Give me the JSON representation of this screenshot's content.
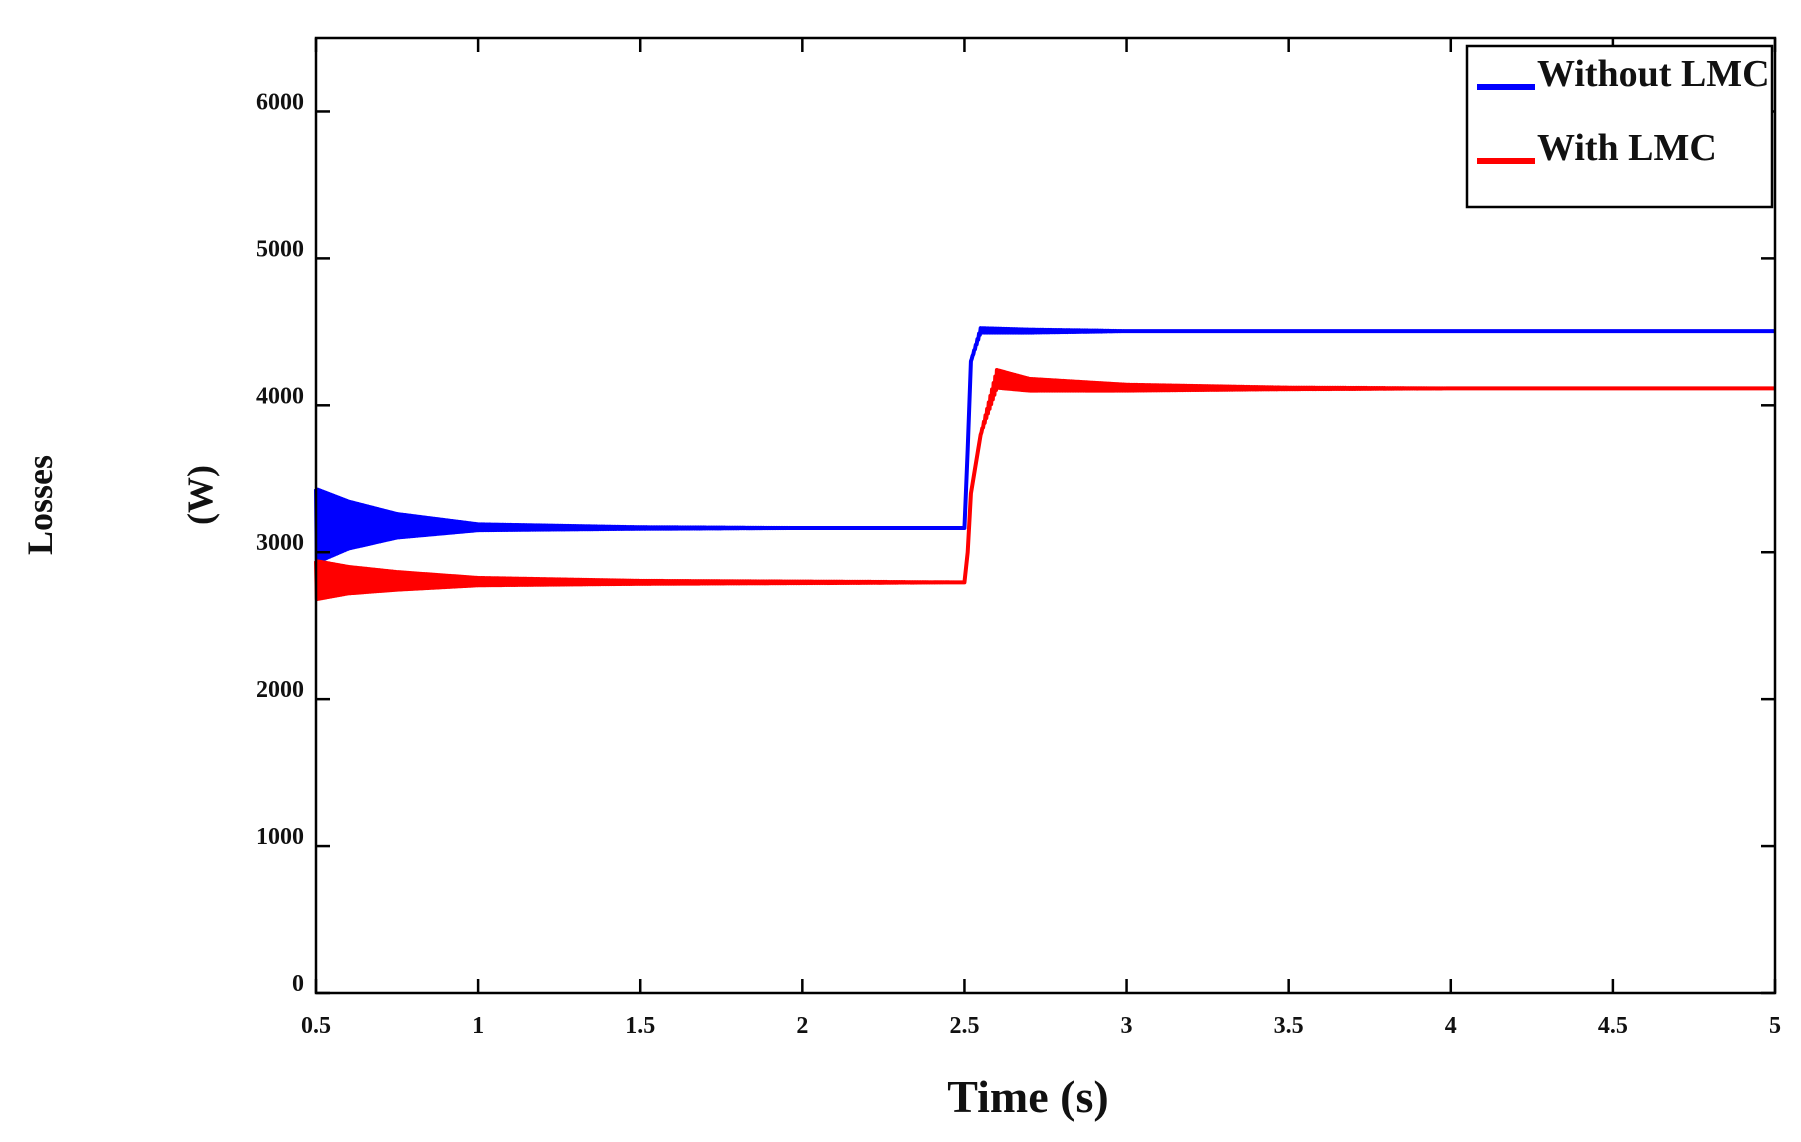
{
  "chart_data": {
    "type": "line",
    "title": "",
    "xlabel": "Time (s)",
    "ylabel_line1": "Losses",
    "ylabel_line2": "(W)",
    "xlim": [
      0.5,
      5
    ],
    "ylim": [
      0,
      6500
    ],
    "xticks": [
      0.5,
      1,
      1.5,
      2,
      2.5,
      3,
      3.5,
      4,
      4.5,
      5
    ],
    "xtick_labels": [
      "0.5",
      "1",
      "1.5",
      "2",
      "2.5",
      "3",
      "3.5",
      "4",
      "4.5",
      "5"
    ],
    "yticks": [
      0,
      1000,
      2000,
      3000,
      4000,
      5000,
      6000
    ],
    "ytick_labels": [
      "0",
      "1000",
      "2000",
      "3000",
      "4000",
      "5000",
      "6000"
    ],
    "grid": false,
    "legend_position": "top-right",
    "series": [
      {
        "name": "Without LMC",
        "color": "#0000ff",
        "x": [
          0.5,
          0.6,
          0.75,
          1.0,
          1.5,
          2.0,
          2.49,
          2.5,
          2.51,
          2.52,
          2.55,
          2.7,
          3.0,
          4.0,
          5.0
        ],
        "y": [
          3180,
          3185,
          3180,
          3170,
          3165,
          3165,
          3165,
          3165,
          3700,
          4300,
          4510,
          4505,
          4505,
          4505,
          4505
        ],
        "oscillation_amplitude": [
          250,
          160,
          80,
          20,
          5,
          0,
          0,
          0,
          0,
          0,
          15,
          10,
          0,
          0,
          0
        ]
      },
      {
        "name": "With LMC",
        "color": "#ff0000",
        "x": [
          0.5,
          0.6,
          0.75,
          1.0,
          1.5,
          2.0,
          2.49,
          2.5,
          2.51,
          2.52,
          2.55,
          2.6,
          2.7,
          3.0,
          3.5,
          4.0,
          5.0
        ],
        "y": [
          2810,
          2810,
          2805,
          2800,
          2795,
          2795,
          2795,
          2795,
          3000,
          3400,
          3800,
          4180,
          4140,
          4120,
          4115,
          4115,
          4115
        ],
        "oscillation_amplitude": [
          130,
          90,
          60,
          25,
          10,
          5,
          0,
          0,
          0,
          0,
          0,
          60,
          40,
          20,
          5,
          0,
          0
        ]
      }
    ]
  }
}
